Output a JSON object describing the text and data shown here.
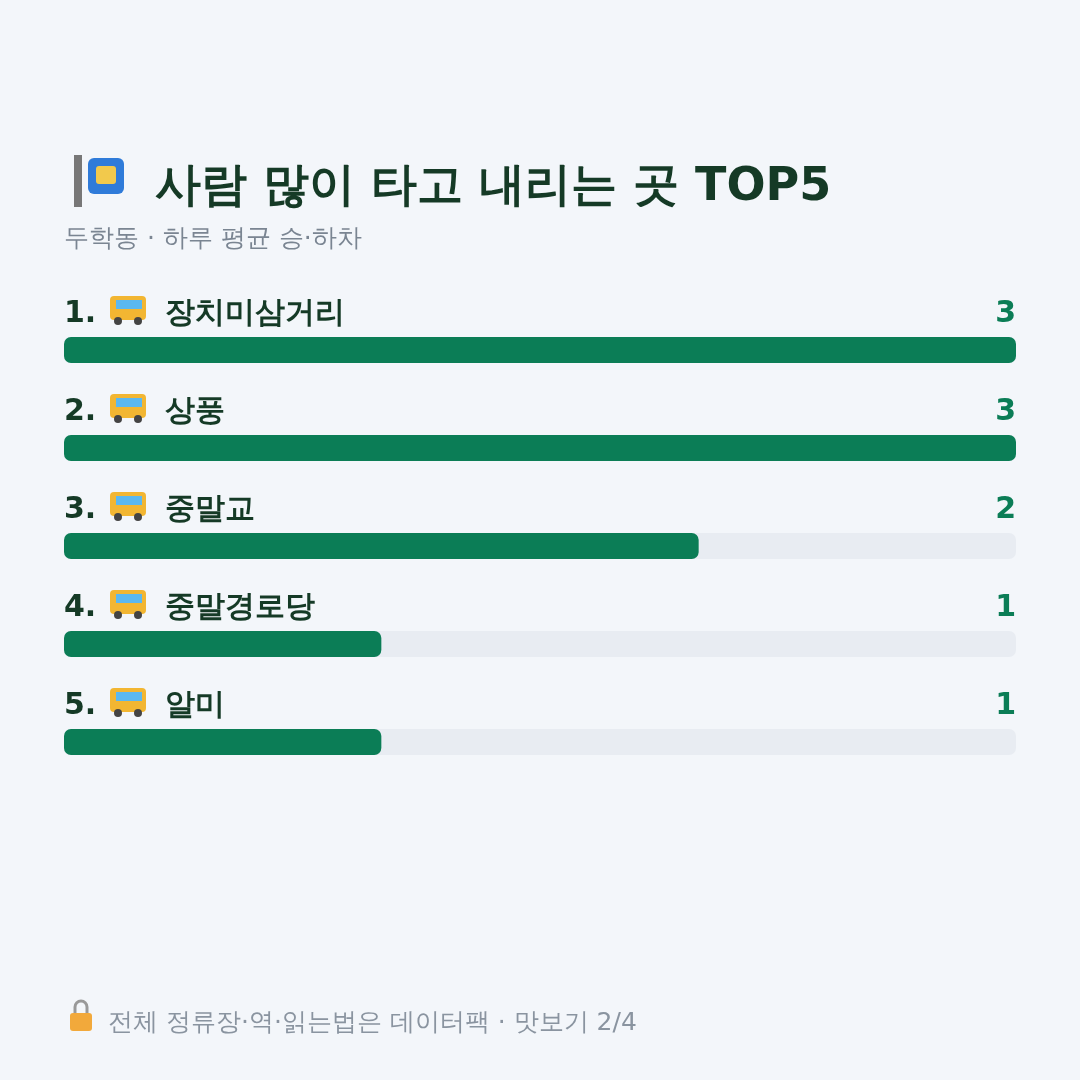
{
  "chart_data": {
    "type": "bar",
    "orientation": "horizontal",
    "title": "사람 많이 타고 내리는 곳 TOP5",
    "subtitle": "두학동 · 하루 평균 승·하차",
    "categories": [
      "1. 장치미삼거리",
      "2. 상풍",
      "3. 중말교",
      "4. 중말경로당",
      "5. 알미"
    ],
    "values": [
      3,
      3,
      2,
      1,
      1
    ],
    "color": "#0b7d56",
    "data_labels": true,
    "annotations": [
      "전체 정류장·역·읽는법은 데이터팩 · 맛보기 2/4"
    ]
  }
}
